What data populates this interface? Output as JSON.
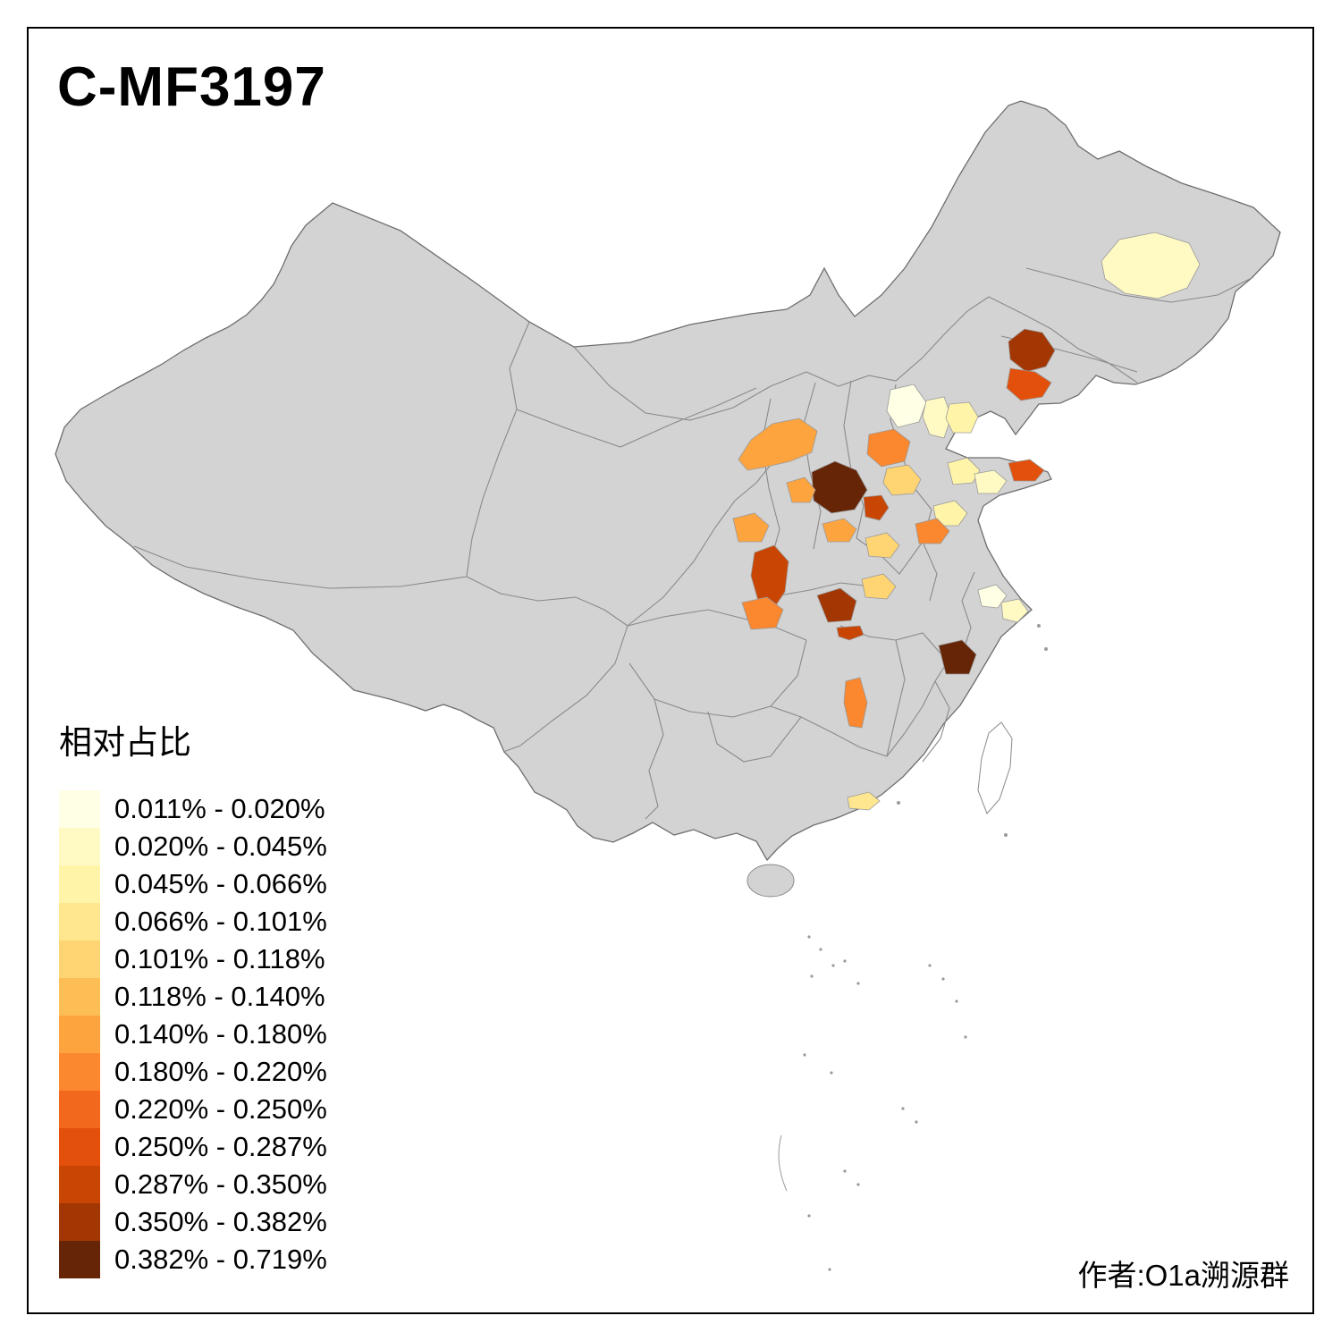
{
  "chart_data": {
    "type": "choropleth",
    "title": "C-MF3197",
    "legend_title": "相对占比",
    "attribution": "作者:O1a溯源群",
    "base_color": "#D3D3D3",
    "boundary_color": "#6E6E6E",
    "bins": [
      {
        "label": "0.011% - 0.020%",
        "color": "#FFFFE5"
      },
      {
        "label": "0.020% - 0.045%",
        "color": "#FFFAC4"
      },
      {
        "label": "0.045% - 0.066%",
        "color": "#FFF4A8"
      },
      {
        "label": "0.066% - 0.101%",
        "color": "#FEE78E"
      },
      {
        "label": "0.101% - 0.118%",
        "color": "#FED572"
      },
      {
        "label": "0.118% - 0.140%",
        "color": "#FEBE56"
      },
      {
        "label": "0.140% - 0.180%",
        "color": "#FEA43F"
      },
      {
        "label": "0.180% - 0.220%",
        "color": "#FB872E"
      },
      {
        "label": "0.220% - 0.250%",
        "color": "#F2691D"
      },
      {
        "label": "0.250% - 0.287%",
        "color": "#E2500C"
      },
      {
        "label": "0.287% - 0.350%",
        "color": "#C94504"
      },
      {
        "label": "0.350% - 0.382%",
        "color": "#A23703"
      },
      {
        "label": "0.382% - 0.719%",
        "color": "#662506"
      }
    ],
    "regions": [
      {
        "id": "region-01",
        "bin": 2
      },
      {
        "id": "region-02",
        "bin": 12
      },
      {
        "id": "region-03",
        "bin": 10
      },
      {
        "id": "region-04",
        "bin": 1
      },
      {
        "id": "region-05",
        "bin": 2
      },
      {
        "id": "region-06",
        "bin": 3
      },
      {
        "id": "region-07",
        "bin": 7
      },
      {
        "id": "region-08",
        "bin": 8
      },
      {
        "id": "region-09",
        "bin": 5
      },
      {
        "id": "region-10",
        "bin": 13
      },
      {
        "id": "region-11",
        "bin": 11
      },
      {
        "id": "region-12",
        "bin": 7
      },
      {
        "id": "region-13",
        "bin": 7
      },
      {
        "id": "region-14",
        "bin": 3
      },
      {
        "id": "region-15",
        "bin": 2
      },
      {
        "id": "region-16",
        "bin": 10
      },
      {
        "id": "region-17",
        "bin": 3
      },
      {
        "id": "region-18",
        "bin": 8
      },
      {
        "id": "region-19",
        "bin": 5
      },
      {
        "id": "region-20",
        "bin": 7
      },
      {
        "id": "region-21",
        "bin": 11
      },
      {
        "id": "region-22",
        "bin": 8
      },
      {
        "id": "region-23",
        "bin": 5
      },
      {
        "id": "region-24",
        "bin": 12
      },
      {
        "id": "region-25",
        "bin": 11
      },
      {
        "id": "region-26",
        "bin": 13
      },
      {
        "id": "region-27",
        "bin": 8
      },
      {
        "id": "region-28",
        "bin": 1
      },
      {
        "id": "region-29",
        "bin": 2
      },
      {
        "id": "region-30",
        "bin": 4
      }
    ]
  }
}
